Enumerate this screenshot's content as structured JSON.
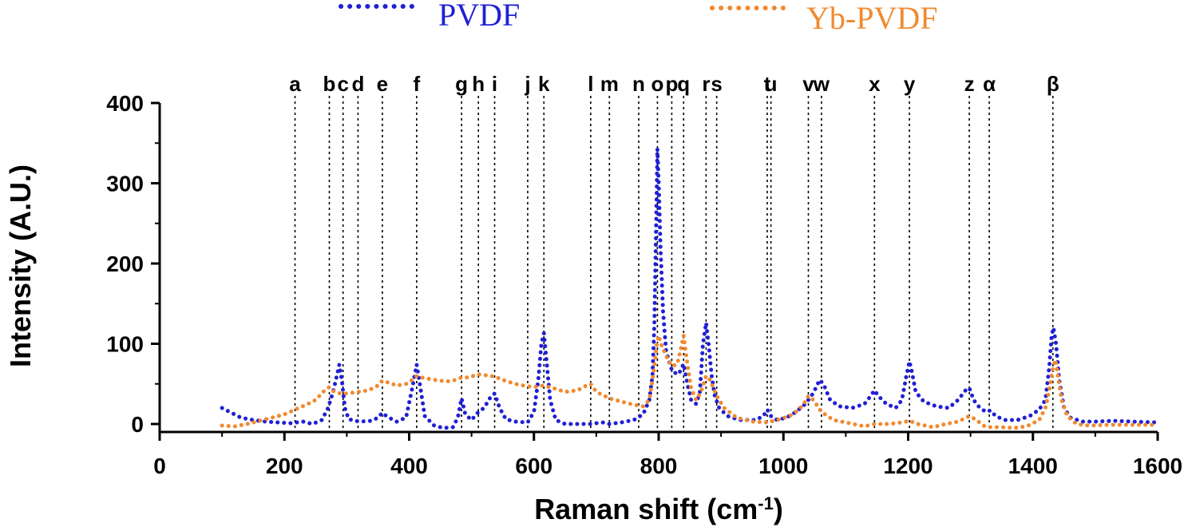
{
  "chart_data": {
    "type": "line",
    "xlabel": "Raman shift (cm",
    "xlabel_superscript": "-1",
    "xlabel_suffix": ")",
    "ylabel": "Intensity (A.U.)",
    "xlim": [
      0,
      1600
    ],
    "ylim": [
      -10,
      400
    ],
    "xticks": [
      0,
      200,
      400,
      600,
      800,
      1000,
      1200,
      1400,
      1600
    ],
    "yticks": [
      0,
      100,
      200,
      300,
      400
    ],
    "grid": false,
    "legend_position": "top",
    "legend": [
      {
        "name": "PVDF",
        "color": "#1f1fd6"
      },
      {
        "name": "Yb-PVDF",
        "color": "#f08a30"
      }
    ],
    "peak_markers": [
      {
        "label": "a",
        "x": 217
      },
      {
        "label": "b",
        "x": 272
      },
      {
        "label": "c",
        "x": 294
      },
      {
        "label": "d",
        "x": 318
      },
      {
        "label": "e",
        "x": 357
      },
      {
        "label": "f",
        "x": 412
      },
      {
        "label": "g",
        "x": 484
      },
      {
        "label": "h",
        "x": 511
      },
      {
        "label": "i",
        "x": 537
      },
      {
        "label": "j",
        "x": 590
      },
      {
        "label": "k",
        "x": 616
      },
      {
        "label": "l",
        "x": 691
      },
      {
        "label": "m",
        "x": 721
      },
      {
        "label": "n",
        "x": 768
      },
      {
        "label": "o",
        "x": 798
      },
      {
        "label": "p",
        "x": 821
      },
      {
        "label": "q",
        "x": 840
      },
      {
        "label": "r",
        "x": 876
      },
      {
        "label": "s",
        "x": 893
      },
      {
        "label": "t",
        "x": 974
      },
      {
        "label": "u",
        "x": 980
      },
      {
        "label": "v",
        "x": 1040
      },
      {
        "label": "w",
        "x": 1061
      },
      {
        "label": "x",
        "x": 1146
      },
      {
        "label": "y",
        "x": 1202
      },
      {
        "label": "z",
        "x": 1298
      },
      {
        "label": "α",
        "x": 1330
      },
      {
        "label": "β",
        "x": 1432
      }
    ],
    "series": [
      {
        "name": "PVDF",
        "color": "#1f1fd6",
        "points": [
          [
            100,
            20
          ],
          [
            115,
            14
          ],
          [
            130,
            8
          ],
          [
            150,
            5
          ],
          [
            170,
            3
          ],
          [
            190,
            2
          ],
          [
            210,
            1
          ],
          [
            230,
            3
          ],
          [
            245,
            0
          ],
          [
            260,
            5
          ],
          [
            270,
            20
          ],
          [
            278,
            40
          ],
          [
            284,
            60
          ],
          [
            288,
            74
          ],
          [
            292,
            55
          ],
          [
            297,
            20
          ],
          [
            303,
            6
          ],
          [
            320,
            3
          ],
          [
            340,
            4
          ],
          [
            350,
            8
          ],
          [
            357,
            14
          ],
          [
            365,
            9
          ],
          [
            380,
            3
          ],
          [
            395,
            8
          ],
          [
            405,
            45
          ],
          [
            412,
            74
          ],
          [
            418,
            45
          ],
          [
            425,
            10
          ],
          [
            440,
            -2
          ],
          [
            455,
            -5
          ],
          [
            470,
            -4
          ],
          [
            478,
            8
          ],
          [
            484,
            32
          ],
          [
            490,
            12
          ],
          [
            500,
            5
          ],
          [
            511,
            15
          ],
          [
            520,
            20
          ],
          [
            530,
            33
          ],
          [
            537,
            38
          ],
          [
            545,
            20
          ],
          [
            555,
            6
          ],
          [
            570,
            3
          ],
          [
            590,
            2
          ],
          [
            600,
            15
          ],
          [
            607,
            55
          ],
          [
            612,
            100
          ],
          [
            616,
            113
          ],
          [
            620,
            80
          ],
          [
            626,
            30
          ],
          [
            635,
            5
          ],
          [
            650,
            0
          ],
          [
            670,
            0
          ],
          [
            691,
            0
          ],
          [
            710,
            2
          ],
          [
            721,
            0
          ],
          [
            740,
            2
          ],
          [
            760,
            5
          ],
          [
            775,
            12
          ],
          [
            785,
            30
          ],
          [
            790,
            60
          ],
          [
            793,
            120
          ],
          [
            796,
            250
          ],
          [
            798,
            343
          ],
          [
            800,
            300
          ],
          [
            803,
            220
          ],
          [
            807,
            140
          ],
          [
            812,
            90
          ],
          [
            818,
            75
          ],
          [
            822,
            65
          ],
          [
            832,
            62
          ],
          [
            840,
            75
          ],
          [
            846,
            50
          ],
          [
            852,
            30
          ],
          [
            860,
            25
          ],
          [
            866,
            40
          ],
          [
            871,
            100
          ],
          [
            876,
            126
          ],
          [
            880,
            100
          ],
          [
            885,
            60
          ],
          [
            890,
            35
          ],
          [
            897,
            20
          ],
          [
            910,
            10
          ],
          [
            930,
            5
          ],
          [
            955,
            5
          ],
          [
            968,
            10
          ],
          [
            974,
            18
          ],
          [
            980,
            10
          ],
          [
            990,
            5
          ],
          [
            1005,
            8
          ],
          [
            1020,
            15
          ],
          [
            1035,
            25
          ],
          [
            1045,
            35
          ],
          [
            1052,
            45
          ],
          [
            1058,
            55
          ],
          [
            1064,
            50
          ],
          [
            1075,
            30
          ],
          [
            1090,
            22
          ],
          [
            1110,
            20
          ],
          [
            1130,
            25
          ],
          [
            1140,
            35
          ],
          [
            1146,
            42
          ],
          [
            1152,
            35
          ],
          [
            1165,
            25
          ],
          [
            1180,
            20
          ],
          [
            1190,
            30
          ],
          [
            1197,
            60
          ],
          [
            1202,
            78
          ],
          [
            1206,
            65
          ],
          [
            1212,
            40
          ],
          [
            1225,
            28
          ],
          [
            1245,
            22
          ],
          [
            1265,
            20
          ],
          [
            1280,
            30
          ],
          [
            1292,
            42
          ],
          [
            1298,
            45
          ],
          [
            1305,
            30
          ],
          [
            1315,
            20
          ],
          [
            1325,
            15
          ],
          [
            1332,
            17
          ],
          [
            1340,
            10
          ],
          [
            1355,
            5
          ],
          [
            1375,
            5
          ],
          [
            1395,
            10
          ],
          [
            1410,
            18
          ],
          [
            1420,
            30
          ],
          [
            1426,
            70
          ],
          [
            1430,
            110
          ],
          [
            1433,
            120
          ],
          [
            1437,
            100
          ],
          [
            1442,
            55
          ],
          [
            1450,
            20
          ],
          [
            1460,
            8
          ],
          [
            1480,
            3
          ],
          [
            1500,
            3
          ],
          [
            1530,
            4
          ],
          [
            1560,
            3
          ],
          [
            1600,
            2
          ]
        ]
      },
      {
        "name": "Yb-PVDF",
        "color": "#f08a30",
        "points": [
          [
            100,
            -2
          ],
          [
            120,
            -3
          ],
          [
            140,
            0
          ],
          [
            160,
            4
          ],
          [
            180,
            8
          ],
          [
            200,
            12
          ],
          [
            217,
            18
          ],
          [
            235,
            24
          ],
          [
            250,
            30
          ],
          [
            262,
            40
          ],
          [
            272,
            46
          ],
          [
            280,
            40
          ],
          [
            290,
            38
          ],
          [
            300,
            38
          ],
          [
            318,
            40
          ],
          [
            335,
            42
          ],
          [
            350,
            48
          ],
          [
            357,
            54
          ],
          [
            365,
            52
          ],
          [
            380,
            48
          ],
          [
            395,
            50
          ],
          [
            405,
            55
          ],
          [
            412,
            60
          ],
          [
            420,
            58
          ],
          [
            440,
            55
          ],
          [
            460,
            53
          ],
          [
            475,
            55
          ],
          [
            484,
            58
          ],
          [
            495,
            58
          ],
          [
            511,
            62
          ],
          [
            520,
            61
          ],
          [
            530,
            60
          ],
          [
            537,
            59
          ],
          [
            550,
            55
          ],
          [
            570,
            50
          ],
          [
            590,
            47
          ],
          [
            600,
            46
          ],
          [
            616,
            48
          ],
          [
            630,
            45
          ],
          [
            650,
            40
          ],
          [
            670,
            42
          ],
          [
            684,
            48
          ],
          [
            691,
            50
          ],
          [
            700,
            40
          ],
          [
            721,
            32
          ],
          [
            740,
            28
          ],
          [
            760,
            24
          ],
          [
            775,
            22
          ],
          [
            785,
            30
          ],
          [
            792,
            65
          ],
          [
            797,
            100
          ],
          [
            800,
            110
          ],
          [
            806,
            95
          ],
          [
            815,
            80
          ],
          [
            822,
            72
          ],
          [
            830,
            75
          ],
          [
            836,
            95
          ],
          [
            840,
            110
          ],
          [
            845,
            80
          ],
          [
            852,
            45
          ],
          [
            860,
            30
          ],
          [
            868,
            40
          ],
          [
            876,
            60
          ],
          [
            882,
            55
          ],
          [
            893,
            35
          ],
          [
            905,
            20
          ],
          [
            925,
            8
          ],
          [
            950,
            3
          ],
          [
            974,
            2
          ],
          [
            990,
            5
          ],
          [
            1010,
            10
          ],
          [
            1025,
            18
          ],
          [
            1035,
            28
          ],
          [
            1040,
            35
          ],
          [
            1048,
            30
          ],
          [
            1061,
            15
          ],
          [
            1080,
            5
          ],
          [
            1100,
            2
          ],
          [
            1130,
            -3
          ],
          [
            1146,
            0
          ],
          [
            1170,
            0
          ],
          [
            1190,
            2
          ],
          [
            1202,
            4
          ],
          [
            1215,
            0
          ],
          [
            1240,
            -4
          ],
          [
            1260,
            0
          ],
          [
            1280,
            3
          ],
          [
            1298,
            10
          ],
          [
            1310,
            5
          ],
          [
            1320,
            -2
          ],
          [
            1330,
            -4
          ],
          [
            1350,
            -4
          ],
          [
            1370,
            -5
          ],
          [
            1390,
            -3
          ],
          [
            1410,
            5
          ],
          [
            1420,
            20
          ],
          [
            1427,
            45
          ],
          [
            1432,
            70
          ],
          [
            1436,
            80
          ],
          [
            1440,
            60
          ],
          [
            1446,
            30
          ],
          [
            1455,
            10
          ],
          [
            1470,
            0
          ],
          [
            1490,
            -2
          ],
          [
            1520,
            -1
          ],
          [
            1560,
            -1
          ],
          [
            1600,
            -1
          ]
        ]
      }
    ]
  }
}
